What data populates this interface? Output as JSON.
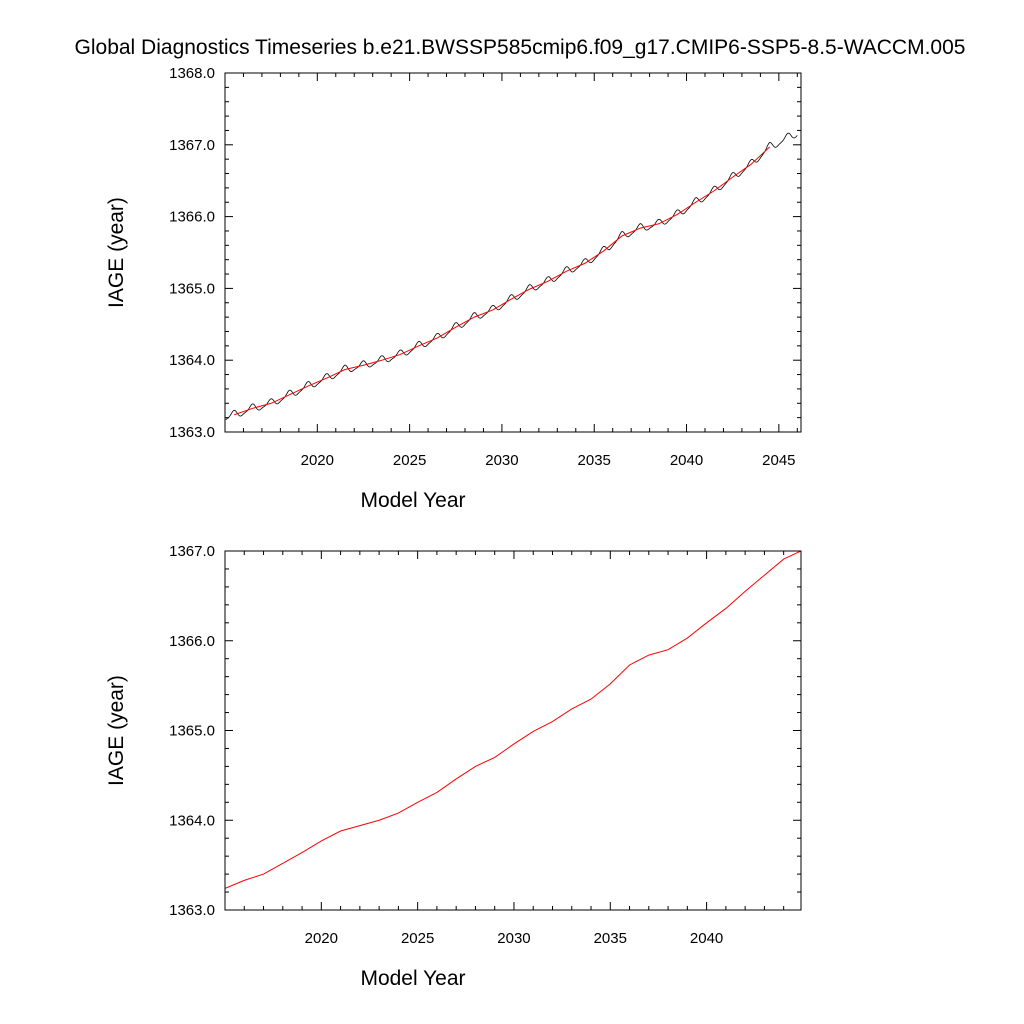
{
  "title": "Global Diagnostics Timeseries b.e21.BWSSP585cmip6.f09_g17.CMIP6-SSP5-8.5-WACCM.005",
  "colors": {
    "monthly": "#000000",
    "annual": "#ff0000",
    "frame": "#000000",
    "background": "#ffffff"
  },
  "chart_data": [
    {
      "type": "line",
      "title": "Global Diagnostics Timeseries b.e21.BWSSP585cmip6.f09_g17.CMIP6-SSP5-8.5-WACCM.005",
      "xlabel": "Model Year",
      "ylabel": "IAGE (year)",
      "xlim": [
        2015.0,
        2046.2
      ],
      "ylim": [
        1363.0,
        1368.0
      ],
      "xticks": [
        2020,
        2025,
        2030,
        2035,
        2040,
        2045
      ],
      "xtick_labels": [
        "2020",
        "2025",
        "2030",
        "2035",
        "2040",
        "2045"
      ],
      "yticks": [
        1363.0,
        1364.0,
        1365.0,
        1366.0,
        1367.0,
        1368.0
      ],
      "ytick_labels": [
        "1363.0",
        "1364.0",
        "1365.0",
        "1366.0",
        "1367.0",
        "1368.0"
      ],
      "grid": false,
      "monthly_series": {
        "color": "#000000",
        "start_year": 2015.04,
        "end_year": 2046.0,
        "seasonal_amplitude": 0.05,
        "trend_x": [
          2015.5,
          2016.5,
          2017.5,
          2018.5,
          2019.5,
          2020.5,
          2021.5,
          2022.5,
          2023.5,
          2024.5,
          2025.5,
          2026.5,
          2027.5,
          2028.5,
          2029.5,
          2030.5,
          2031.5,
          2032.5,
          2033.5,
          2034.5,
          2035.5,
          2036.5,
          2037.5,
          2038.5,
          2039.5,
          2040.5,
          2041.5,
          2042.5,
          2043.5,
          2044.5,
          2045.5
        ],
        "trend_y": [
          1363.24,
          1363.33,
          1363.4,
          1363.52,
          1363.64,
          1363.75,
          1363.87,
          1363.93,
          1364.0,
          1364.08,
          1364.2,
          1364.31,
          1364.46,
          1364.6,
          1364.7,
          1364.85,
          1364.99,
          1365.1,
          1365.24,
          1365.35,
          1365.52,
          1365.73,
          1365.84,
          1365.9,
          1366.03,
          1366.2,
          1366.36,
          1366.55,
          1366.73,
          1366.97,
          1367.1
        ]
      },
      "annual_series": {
        "color": "#ff0000",
        "x": [
          2015.5,
          2016.5,
          2017.5,
          2018.5,
          2019.5,
          2020.5,
          2021.5,
          2022.5,
          2023.5,
          2024.5,
          2025.5,
          2026.5,
          2027.5,
          2028.5,
          2029.5,
          2030.5,
          2031.5,
          2032.5,
          2033.5,
          2034.5,
          2035.5,
          2036.5,
          2037.5,
          2038.5,
          2039.5,
          2040.5,
          2041.5,
          2042.5,
          2043.5,
          2044.5
        ],
        "y": [
          1363.24,
          1363.33,
          1363.4,
          1363.52,
          1363.64,
          1363.75,
          1363.87,
          1363.93,
          1364.0,
          1364.08,
          1364.2,
          1364.31,
          1364.46,
          1364.6,
          1364.7,
          1364.85,
          1364.99,
          1365.1,
          1365.24,
          1365.35,
          1365.52,
          1365.73,
          1365.84,
          1365.9,
          1366.03,
          1366.2,
          1366.36,
          1366.55,
          1366.73,
          1366.97
        ]
      }
    },
    {
      "type": "line",
      "xlabel": "Model Year",
      "ylabel": "IAGE (year)",
      "xlim": [
        2015.0,
        2044.9
      ],
      "ylim": [
        1363.0,
        1367.0
      ],
      "xticks": [
        2020,
        2025,
        2030,
        2035,
        2040
      ],
      "xtick_labels": [
        "2020",
        "2025",
        "2030",
        "2035",
        "2040"
      ],
      "yticks": [
        1363.0,
        1364.0,
        1365.0,
        1366.0,
        1367.0
      ],
      "ytick_labels": [
        "1363.0",
        "1364.0",
        "1365.0",
        "1366.0",
        "1367.0"
      ],
      "grid": false,
      "series": [
        {
          "color": "#ff0000",
          "x": [
            2015.0,
            2016.0,
            2017.0,
            2018.0,
            2019.0,
            2020.0,
            2021.0,
            2022.0,
            2023.0,
            2024.0,
            2025.0,
            2026.0,
            2027.0,
            2028.0,
            2029.0,
            2030.0,
            2031.0,
            2032.0,
            2033.0,
            2034.0,
            2035.0,
            2036.0,
            2037.0,
            2038.0,
            2039.0,
            2040.0,
            2041.0,
            2042.0,
            2043.0,
            2044.0,
            2044.9
          ],
          "y": [
            1363.24,
            1363.33,
            1363.4,
            1363.52,
            1363.64,
            1363.77,
            1363.88,
            1363.94,
            1364.0,
            1364.08,
            1364.2,
            1364.31,
            1364.46,
            1364.6,
            1364.7,
            1364.85,
            1364.99,
            1365.1,
            1365.24,
            1365.35,
            1365.52,
            1365.73,
            1365.84,
            1365.9,
            1366.03,
            1366.2,
            1366.36,
            1366.55,
            1366.73,
            1366.91,
            1367.0
          ]
        }
      ]
    }
  ]
}
